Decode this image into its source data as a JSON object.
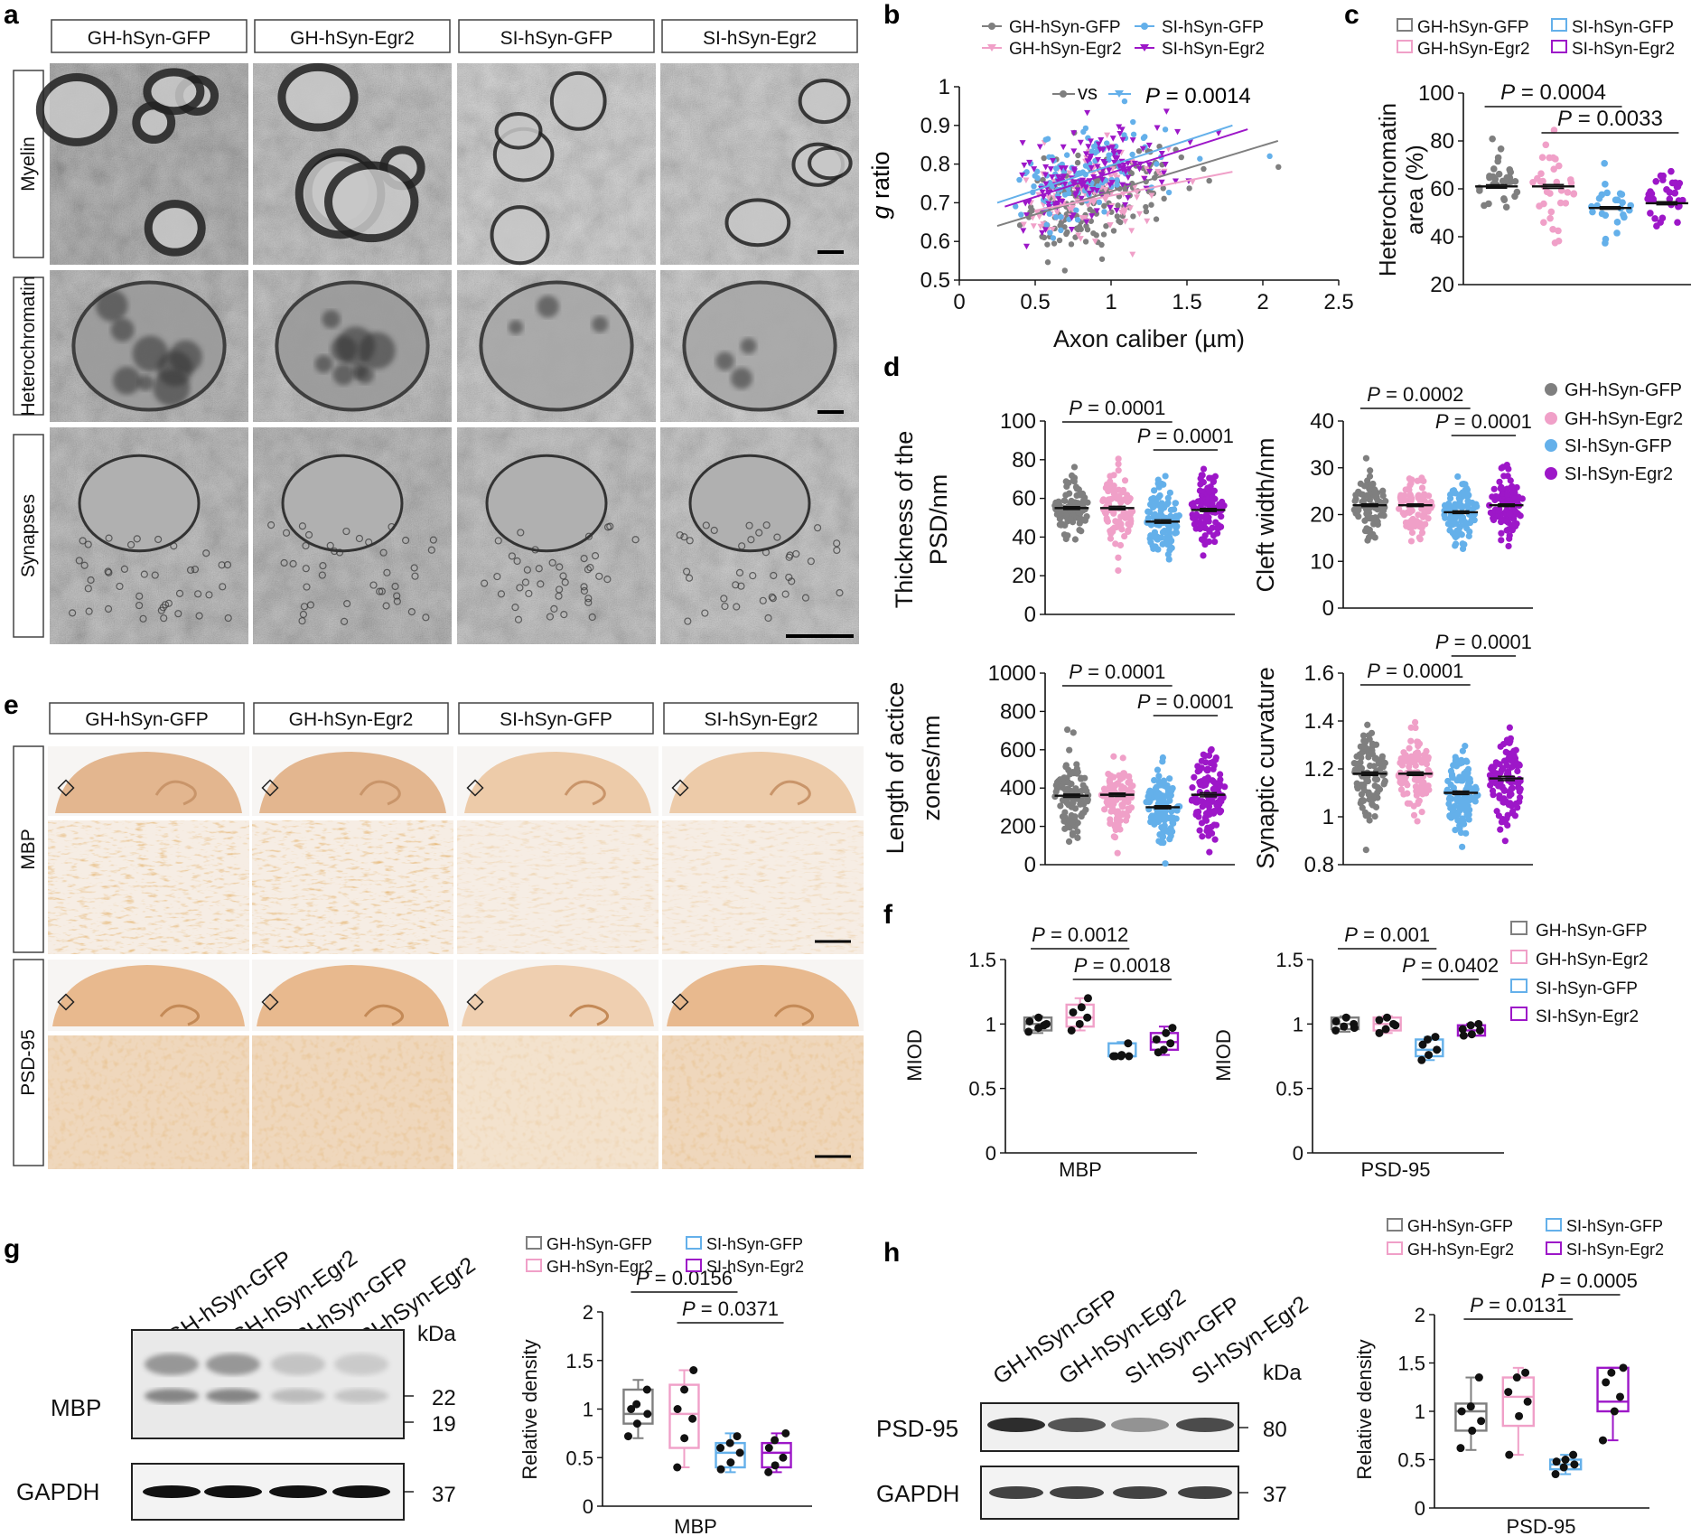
{
  "figure": {
    "panel_letters": {
      "a": "a",
      "b": "b",
      "c": "c",
      "d": "d",
      "e": "e",
      "f": "f",
      "g": "g",
      "h": "h"
    },
    "groups": [
      "GH-hSyn-GFP",
      "GH-hSyn-Egr2",
      "SI-hSyn-GFP",
      "SI-hSyn-Egr2"
    ],
    "colors": {
      "gh_gfp": "#7f7f7f",
      "gh_egr2": "#f0a0c8",
      "si_gfp": "#64b0ea",
      "si_egr2": "#9d17c8",
      "black": "#111111"
    },
    "panel_a": {
      "row_labels": [
        "Myelin",
        "Heterochromatin",
        "Synapses"
      ]
    },
    "panel_b": {
      "ylabel_italic": "g",
      "ylabel_rest": " ratio",
      "xlabel": "Axon caliber (µm)",
      "vs": "vs",
      "p_italic": "P",
      "p_value": " = 0.0014"
    },
    "panel_c": {
      "ylabel_line1": "Heterochromatin",
      "ylabel_line2": "area (%)"
    },
    "panel_d": {
      "labels": {
        "psd_line1": "Thickness of the",
        "psd_line2": "PSD/nm",
        "cleft": "Cleft width/nm",
        "active_line1": "Length of actice",
        "active_line2": "zones/nm",
        "curv": "Synaptic curvature"
      }
    },
    "panel_e": {
      "row_labels": [
        "MBP",
        "PSD-95"
      ]
    },
    "panel_f": {
      "ylabel": "MIOD",
      "xlabels": [
        "MBP",
        "PSD-95"
      ]
    },
    "panel_g": {
      "kda_label": "kDa",
      "rows": [
        "MBP",
        "GAPDH"
      ],
      "markers": [
        "22",
        "19",
        "37"
      ],
      "ylabel": "Relative density",
      "xlabel": "MBP"
    },
    "panel_h": {
      "kda_label": "kDa",
      "rows": [
        "PSD-95",
        "GAPDH"
      ],
      "markers": [
        "80",
        "37"
      ],
      "ylabel": "Relative density",
      "xlabel": "PSD-95"
    }
  },
  "chart_data": [
    {
      "id": "b",
      "type": "scatter",
      "title": "",
      "xlabel": "Axon caliber (µm)",
      "ylabel": "g ratio",
      "xlim": [
        0,
        2.5
      ],
      "ylim": [
        0.5,
        1
      ],
      "xticks": [
        "0",
        "0.5",
        "1",
        "1.5",
        "2",
        "2.5"
      ],
      "yticks": [
        "0.5",
        "0.6",
        "0.7",
        "0.8",
        "0.9",
        "1"
      ],
      "legend": [
        "GH-hSyn-GFP",
        "SI-hSyn-GFP",
        "GH-hSyn-Egr2",
        "SI-hSyn-Egr2"
      ],
      "fit_lines": [
        {
          "name": "GH-hSyn-GFP",
          "x": [
            0.25,
            2.1
          ],
          "y": [
            0.64,
            0.86
          ]
        },
        {
          "name": "GH-hSyn-Egr2",
          "x": [
            0.5,
            1.8
          ],
          "y": [
            0.68,
            0.78
          ]
        },
        {
          "name": "SI-hSyn-GFP",
          "x": [
            0.25,
            1.8
          ],
          "y": [
            0.7,
            0.9
          ]
        },
        {
          "name": "SI-hSyn-Egr2",
          "x": [
            0.3,
            1.9
          ],
          "y": [
            0.69,
            0.89
          ]
        }
      ],
      "annotations": [
        "P = 0.0014"
      ]
    },
    {
      "id": "c",
      "type": "scatter",
      "title": "",
      "ylabel": "Heterochromatin area (%)",
      "ylim": [
        20,
        100
      ],
      "yticks": [
        "20",
        "40",
        "60",
        "80",
        "100"
      ],
      "categories": [
        "GH-hSyn-GFP",
        "GH-hSyn-Egr2",
        "SI-hSyn-GFP",
        "SI-hSyn-Egr2"
      ],
      "means": [
        61,
        61,
        52,
        54
      ],
      "spread": [
        9,
        10,
        7,
        8
      ],
      "n": [
        30,
        34,
        24,
        34
      ],
      "comparisons": [
        {
          "from": 0,
          "to": 2,
          "label": "P = 0.0004"
        },
        {
          "from": 1,
          "to": 3,
          "label": "P = 0.0033"
        }
      ]
    },
    {
      "id": "d1",
      "type": "scatter",
      "ylabel": "Thickness of the PSD/nm",
      "ylim": [
        0,
        100
      ],
      "yticks": [
        "0",
        "20",
        "40",
        "60",
        "80",
        "100"
      ],
      "categories": [
        "GH-hSyn-GFP",
        "GH-hSyn-Egr2",
        "SI-hSyn-GFP",
        "SI-hSyn-Egr2"
      ],
      "means": [
        55,
        55,
        48,
        54
      ],
      "spread": [
        9,
        11,
        11,
        10
      ],
      "n": [
        90,
        90,
        100,
        100
      ],
      "comparisons": [
        {
          "from": 0,
          "to": 2,
          "label": "P = 0.0001"
        },
        {
          "from": 2,
          "to": 3,
          "label": "P = 0.0001"
        }
      ]
    },
    {
      "id": "d2",
      "type": "scatter",
      "ylabel": "Cleft width/nm",
      "ylim": [
        0,
        40
      ],
      "yticks": [
        "0",
        "10",
        "20",
        "30",
        "40"
      ],
      "categories": [
        "GH-hSyn-GFP",
        "GH-hSyn-Egr2",
        "SI-hSyn-GFP",
        "SI-hSyn-Egr2"
      ],
      "means": [
        22,
        22,
        20.5,
        22
      ],
      "spread": [
        3.5,
        3.5,
        3.5,
        3.5
      ],
      "n": [
        90,
        90,
        100,
        100
      ],
      "comparisons": [
        {
          "from": 0,
          "to": 2,
          "label": "P = 0.0002"
        },
        {
          "from": 2,
          "to": 3,
          "label": "P = 0.0001"
        }
      ]
    },
    {
      "id": "d3",
      "type": "scatter",
      "ylabel": "Length of actice zones/nm",
      "ylim": [
        0,
        1000
      ],
      "yticks": [
        "0",
        "200",
        "400",
        "600",
        "800",
        "1000"
      ],
      "categories": [
        "GH-hSyn-GFP",
        "GH-hSyn-Egr2",
        "SI-hSyn-GFP",
        "SI-hSyn-Egr2"
      ],
      "means": [
        360,
        365,
        300,
        365
      ],
      "spread": [
        110,
        110,
        100,
        130
      ],
      "n": [
        100,
        100,
        110,
        110
      ],
      "comparisons": [
        {
          "from": 0,
          "to": 2,
          "label": "P = 0.0001"
        },
        {
          "from": 2,
          "to": 3,
          "label": "P = 0.0001"
        }
      ]
    },
    {
      "id": "d4",
      "type": "scatter",
      "ylabel": "Synaptic curvature",
      "ylim": [
        0.8,
        1.6
      ],
      "yticks": [
        "0.8",
        "1",
        "1.2",
        "1.4",
        "1.6"
      ],
      "categories": [
        "GH-hSyn-GFP",
        "GH-hSyn-Egr2",
        "SI-hSyn-GFP",
        "SI-hSyn-Egr2"
      ],
      "means": [
        1.18,
        1.18,
        1.1,
        1.16
      ],
      "spread": [
        0.09,
        0.09,
        0.09,
        0.11
      ],
      "n": [
        100,
        100,
        110,
        110
      ],
      "comparisons": [
        {
          "from": 0,
          "to": 2,
          "label": "P = 0.0001"
        },
        {
          "from": 2,
          "to": 3,
          "label": "P = 0.0001"
        }
      ],
      "legend": [
        "GH-hSyn-GFP",
        "GH-hSyn-Egr2",
        "SI-hSyn-GFP",
        "SI-hSyn-Egr2"
      ]
    },
    {
      "id": "f1",
      "type": "box",
      "ylabel": "MIOD",
      "xlabel": "MBP",
      "ylim": [
        0,
        1.5
      ],
      "yticks": [
        "0",
        "0.5",
        "1",
        "1.5"
      ],
      "boxes": [
        {
          "min": 0.93,
          "q1": 0.95,
          "median": 1.0,
          "q3": 1.05,
          "max": 1.06,
          "points": [
            0.94,
            0.97,
            1.0,
            1.02,
            1.05,
            0.99
          ]
        },
        {
          "min": 0.95,
          "q1": 0.98,
          "median": 1.05,
          "q3": 1.15,
          "max": 1.2,
          "points": [
            0.95,
            1.0,
            1.05,
            1.09,
            1.13,
            1.2
          ]
        },
        {
          "min": 0.75,
          "q1": 0.75,
          "median": 0.75,
          "q3": 0.85,
          "max": 0.86,
          "points": [
            0.75,
            0.75,
            0.75,
            0.75,
            0.76,
            0.85
          ]
        },
        {
          "min": 0.76,
          "q1": 0.8,
          "median": 0.86,
          "q3": 0.93,
          "max": 0.98,
          "points": [
            0.78,
            0.8,
            0.85,
            0.88,
            0.93,
            0.97
          ]
        }
      ],
      "comparisons": [
        {
          "from": 0,
          "to": 2,
          "label": "P = 0.0012"
        },
        {
          "from": 1,
          "to": 3,
          "label": "P = 0.0018"
        }
      ],
      "legend": [
        "GH-hSyn-GFP",
        "GH-hSyn-Egr2",
        "SI-hSyn-GFP",
        "SI-hSyn-Egr2"
      ]
    },
    {
      "id": "f2",
      "type": "box",
      "ylabel": "MIOD",
      "xlabel": "PSD-95",
      "ylim": [
        0,
        1.5
      ],
      "yticks": [
        "0",
        "0.5",
        "1",
        "1.5"
      ],
      "boxes": [
        {
          "min": 0.94,
          "q1": 0.96,
          "median": 1.0,
          "q3": 1.05,
          "max": 1.06,
          "points": [
            0.95,
            0.98,
            1.0,
            1.02,
            1.05,
            0.97
          ]
        },
        {
          "min": 0.93,
          "q1": 0.95,
          "median": 1.0,
          "q3": 1.05,
          "max": 1.06,
          "points": [
            0.93,
            0.96,
            1.0,
            1.03,
            1.05,
            0.99
          ]
        },
        {
          "min": 0.72,
          "q1": 0.75,
          "median": 0.8,
          "q3": 0.88,
          "max": 0.9,
          "points": [
            0.72,
            0.76,
            0.8,
            0.84,
            0.88,
            0.9
          ]
        },
        {
          "min": 0.91,
          "q1": 0.91,
          "median": 0.95,
          "q3": 0.99,
          "max": 1.0,
          "points": [
            0.91,
            0.92,
            0.95,
            0.96,
            0.99,
            1.0
          ]
        }
      ],
      "comparisons": [
        {
          "from": 0,
          "to": 2,
          "label": "P = 0.001"
        },
        {
          "from": 2,
          "to": 3,
          "label": "P = 0.0402"
        }
      ],
      "legend": [
        "GH-hSyn-GFP",
        "GH-hSyn-Egr2",
        "SI-hSyn-GFP",
        "SI-hSyn-Egr2"
      ]
    },
    {
      "id": "g",
      "type": "box",
      "ylabel": "Relative density",
      "xlabel": "MBP",
      "ylim": [
        0,
        2
      ],
      "yticks": [
        "0",
        "0.5",
        "1",
        "1.5",
        "2"
      ],
      "boxes": [
        {
          "min": 0.7,
          "q1": 0.85,
          "median": 0.95,
          "q3": 1.2,
          "max": 1.3,
          "points": [
            0.72,
            0.85,
            0.95,
            1.0,
            1.05,
            1.2
          ]
        },
        {
          "min": 0.4,
          "q1": 0.6,
          "median": 0.95,
          "q3": 1.25,
          "max": 1.4,
          "points": [
            0.4,
            0.7,
            0.9,
            1.0,
            1.2,
            1.4
          ]
        },
        {
          "min": 0.35,
          "q1": 0.4,
          "median": 0.55,
          "q3": 0.65,
          "max": 0.75,
          "points": [
            0.38,
            0.45,
            0.55,
            0.6,
            0.65,
            0.72
          ]
        },
        {
          "min": 0.35,
          "q1": 0.4,
          "median": 0.55,
          "q3": 0.65,
          "max": 0.75,
          "points": [
            0.35,
            0.42,
            0.5,
            0.6,
            0.68,
            0.75
          ]
        }
      ],
      "comparisons": [
        {
          "from": 0,
          "to": 2,
          "label": "P = 0.0156"
        },
        {
          "from": 1,
          "to": 3,
          "label": "P = 0.0371"
        }
      ],
      "legend": [
        "GH-hSyn-GFP",
        "SI-hSyn-GFP",
        "GH-hSyn-Egr2",
        "SI-hSyn-Egr2"
      ]
    },
    {
      "id": "h",
      "type": "box",
      "ylabel": "Relative density",
      "xlabel": "PSD-95",
      "ylim": [
        0,
        2
      ],
      "yticks": [
        "0",
        "0.5",
        "1",
        "1.5",
        "2"
      ],
      "boxes": [
        {
          "min": 0.6,
          "q1": 0.8,
          "median": 1.0,
          "q3": 1.08,
          "max": 1.35,
          "points": [
            0.62,
            0.8,
            0.9,
            1.0,
            1.05,
            1.35
          ]
        },
        {
          "min": 0.55,
          "q1": 0.85,
          "median": 1.15,
          "q3": 1.35,
          "max": 1.45,
          "points": [
            0.55,
            0.95,
            1.1,
            1.2,
            1.35,
            1.4
          ]
        },
        {
          "min": 0.35,
          "q1": 0.4,
          "median": 0.45,
          "q3": 0.5,
          "max": 0.55,
          "points": [
            0.35,
            0.42,
            0.45,
            0.48,
            0.5,
            0.55
          ]
        },
        {
          "min": 0.7,
          "q1": 1.0,
          "median": 1.1,
          "q3": 1.45,
          "max": 1.45,
          "points": [
            0.7,
            1.0,
            1.15,
            1.3,
            1.4,
            1.45
          ]
        }
      ],
      "comparisons": [
        {
          "from": 0,
          "to": 2,
          "label": "P = 0.0131"
        },
        {
          "from": 2,
          "to": 3,
          "label": "P = 0.0005"
        }
      ],
      "legend": [
        "GH-hSyn-GFP",
        "SI-hSyn-GFP",
        "GH-hSyn-Egr2",
        "SI-hSyn-Egr2"
      ]
    }
  ]
}
